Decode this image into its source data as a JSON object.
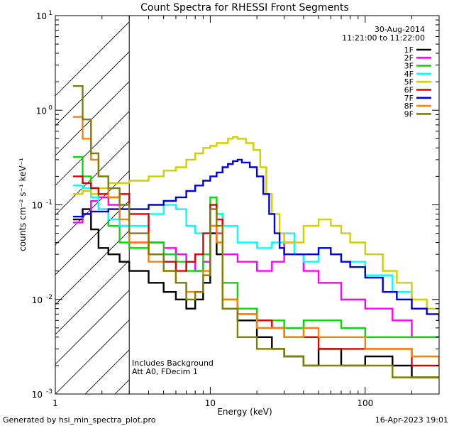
{
  "chart_data": {
    "type": "line",
    "title": "Count Spectra for RHESSI Front Segments",
    "xlabel": "Energy (keV)",
    "ylabel": "counts cm⁻² s⁻¹ keV⁻¹",
    "x_scale": "log",
    "y_scale": "log",
    "xlim": [
      1,
      300
    ],
    "ylim": [
      0.001,
      10
    ],
    "x_tick_labels": [
      {
        "v": 1,
        "t": "1"
      },
      {
        "v": 10,
        "t": "10"
      },
      {
        "v": 100,
        "t": "100"
      }
    ],
    "y_tick_labels": [
      {
        "v": 0.001,
        "b": "10",
        "e": "-3"
      },
      {
        "v": 0.01,
        "b": "10",
        "e": "-2"
      },
      {
        "v": 0.1,
        "b": "10",
        "e": "-1"
      },
      {
        "v": 1,
        "b": "10",
        "e": "0"
      },
      {
        "v": 10,
        "b": "10",
        "e": "1"
      }
    ],
    "date_label": "30-Aug-2014",
    "time_range_label": "11:21:00 to 11:22:00",
    "hatched_region_end_kev": 3,
    "annotations": [
      "Includes Background",
      "Att A0, FDecim 1"
    ],
    "legend_position": "top-right",
    "series": [
      {
        "name": "1F",
        "color": "#000000",
        "points": [
          [
            1.3,
            0.07
          ],
          [
            1.5,
            0.09
          ],
          [
            1.7,
            0.055
          ],
          [
            1.9,
            0.035
          ],
          [
            2.2,
            0.03
          ],
          [
            2.6,
            0.025
          ],
          [
            3,
            0.02
          ],
          [
            4,
            0.015
          ],
          [
            5,
            0.012
          ],
          [
            6,
            0.01
          ],
          [
            7,
            0.008
          ],
          [
            8,
            0.01
          ],
          [
            9,
            0.015
          ],
          [
            10,
            0.05
          ],
          [
            11,
            0.03
          ],
          [
            12,
            0.008
          ],
          [
            15,
            0.006
          ],
          [
            20,
            0.004
          ],
          [
            25,
            0.003
          ],
          [
            30,
            0.0025
          ],
          [
            40,
            0.002
          ],
          [
            50,
            0.003
          ],
          [
            70,
            0.002
          ],
          [
            100,
            0.0025
          ],
          [
            150,
            0.002
          ],
          [
            200,
            0.0015
          ],
          [
            250,
            0.0015
          ],
          [
            300,
            0.0015
          ]
        ]
      },
      {
        "name": "2F",
        "color": "#ff00ff",
        "points": [
          [
            1.3,
            0.065
          ],
          [
            1.5,
            0.08
          ],
          [
            1.7,
            0.11
          ],
          [
            1.9,
            0.12
          ],
          [
            2.2,
            0.1
          ],
          [
            2.6,
            0.06
          ],
          [
            3,
            0.04
          ],
          [
            4,
            0.04
          ],
          [
            5,
            0.035
          ],
          [
            6,
            0.03
          ],
          [
            7,
            0.025
          ],
          [
            8,
            0.02
          ],
          [
            9,
            0.025
          ],
          [
            10,
            0.06
          ],
          [
            11,
            0.05
          ],
          [
            12,
            0.03
          ],
          [
            15,
            0.025
          ],
          [
            20,
            0.02
          ],
          [
            25,
            0.025
          ],
          [
            30,
            0.04
          ],
          [
            35,
            0.03
          ],
          [
            40,
            0.02
          ],
          [
            50,
            0.015
          ],
          [
            70,
            0.01
          ],
          [
            100,
            0.008
          ],
          [
            150,
            0.006
          ],
          [
            200,
            0.004
          ],
          [
            300,
            0.004
          ]
        ]
      },
      {
        "name": "3F",
        "color": "#00e000",
        "points": [
          [
            1.3,
            0.32
          ],
          [
            1.5,
            0.2
          ],
          [
            1.7,
            0.15
          ],
          [
            1.9,
            0.09
          ],
          [
            2.2,
            0.06
          ],
          [
            2.6,
            0.04
          ],
          [
            3,
            0.035
          ],
          [
            4,
            0.04
          ],
          [
            5,
            0.03
          ],
          [
            6,
            0.025
          ],
          [
            7,
            0.02
          ],
          [
            8,
            0.02
          ],
          [
            9,
            0.03
          ],
          [
            10,
            0.12
          ],
          [
            11,
            0.08
          ],
          [
            12,
            0.015
          ],
          [
            15,
            0.008
          ],
          [
            20,
            0.006
          ],
          [
            25,
            0.006
          ],
          [
            30,
            0.005
          ],
          [
            40,
            0.006
          ],
          [
            50,
            0.006
          ],
          [
            70,
            0.005
          ],
          [
            100,
            0.004
          ],
          [
            150,
            0.004
          ],
          [
            200,
            0.004
          ],
          [
            300,
            0.004
          ]
        ]
      },
      {
        "name": "4F",
        "color": "#00ffff",
        "points": [
          [
            1.3,
            0.16
          ],
          [
            1.5,
            0.15
          ],
          [
            1.7,
            0.12
          ],
          [
            1.9,
            0.09
          ],
          [
            2.2,
            0.07
          ],
          [
            2.6,
            0.06
          ],
          [
            3,
            0.06
          ],
          [
            4,
            0.08
          ],
          [
            5,
            0.1
          ],
          [
            6,
            0.09
          ],
          [
            7,
            0.06
          ],
          [
            8,
            0.05
          ],
          [
            9,
            0.05
          ],
          [
            10,
            0.09
          ],
          [
            11,
            0.08
          ],
          [
            12,
            0.06
          ],
          [
            15,
            0.04
          ],
          [
            20,
            0.035
          ],
          [
            25,
            0.04
          ],
          [
            30,
            0.05
          ],
          [
            35,
            0.03
          ],
          [
            40,
            0.025
          ],
          [
            50,
            0.035
          ],
          [
            60,
            0.03
          ],
          [
            70,
            0.025
          ],
          [
            100,
            0.018
          ],
          [
            150,
            0.012
          ],
          [
            200,
            0.008
          ],
          [
            300,
            0.006
          ]
        ]
      },
      {
        "name": "5F",
        "color": "#d0d000",
        "points": [
          [
            1.3,
            0.13
          ],
          [
            1.5,
            0.14
          ],
          [
            1.7,
            0.13
          ],
          [
            1.9,
            0.15
          ],
          [
            2.2,
            0.17
          ],
          [
            2.6,
            0.17
          ],
          [
            3,
            0.18
          ],
          [
            4,
            0.2
          ],
          [
            5,
            0.23
          ],
          [
            6,
            0.25
          ],
          [
            7,
            0.3
          ],
          [
            8,
            0.35
          ],
          [
            9,
            0.4
          ],
          [
            10,
            0.42
          ],
          [
            11,
            0.45
          ],
          [
            12,
            0.45
          ],
          [
            13,
            0.5
          ],
          [
            14,
            0.52
          ],
          [
            15,
            0.5
          ],
          [
            17,
            0.45
          ],
          [
            19,
            0.38
          ],
          [
            21,
            0.25
          ],
          [
            23,
            0.13
          ],
          [
            25,
            0.08
          ],
          [
            28,
            0.05
          ],
          [
            30,
            0.04
          ],
          [
            40,
            0.06
          ],
          [
            50,
            0.07
          ],
          [
            60,
            0.06
          ],
          [
            70,
            0.05
          ],
          [
            80,
            0.04
          ],
          [
            100,
            0.03
          ],
          [
            130,
            0.02
          ],
          [
            160,
            0.015
          ],
          [
            200,
            0.01
          ],
          [
            250,
            0.008
          ],
          [
            300,
            0.006
          ]
        ]
      },
      {
        "name": "6F",
        "color": "#e00000",
        "points": [
          [
            1.3,
            0.2
          ],
          [
            1.5,
            0.17
          ],
          [
            1.7,
            0.15
          ],
          [
            1.9,
            0.13
          ],
          [
            2.2,
            0.12
          ],
          [
            2.6,
            0.13
          ],
          [
            3,
            0.08
          ],
          [
            4,
            0.03
          ],
          [
            5,
            0.025
          ],
          [
            6,
            0.02
          ],
          [
            7,
            0.025
          ],
          [
            8,
            0.03
          ],
          [
            9,
            0.05
          ],
          [
            10,
            0.1
          ],
          [
            11,
            0.07
          ],
          [
            12,
            0.01
          ],
          [
            15,
            0.007
          ],
          [
            20,
            0.006
          ],
          [
            25,
            0.005
          ],
          [
            30,
            0.004
          ],
          [
            40,
            0.004
          ],
          [
            50,
            0.003
          ],
          [
            70,
            0.003
          ],
          [
            100,
            0.003
          ],
          [
            150,
            0.003
          ],
          [
            200,
            0.002
          ],
          [
            300,
            0.002
          ]
        ]
      },
      {
        "name": "7F",
        "color": "#0000dd",
        "points": [
          [
            1.3,
            0.075
          ],
          [
            1.5,
            0.08
          ],
          [
            1.7,
            0.085
          ],
          [
            1.9,
            0.085
          ],
          [
            2.2,
            0.09
          ],
          [
            2.6,
            0.09
          ],
          [
            3,
            0.09
          ],
          [
            4,
            0.1
          ],
          [
            5,
            0.11
          ],
          [
            6,
            0.12
          ],
          [
            7,
            0.14
          ],
          [
            8,
            0.16
          ],
          [
            9,
            0.18
          ],
          [
            10,
            0.2
          ],
          [
            11,
            0.22
          ],
          [
            12,
            0.25
          ],
          [
            13,
            0.27
          ],
          [
            14,
            0.29
          ],
          [
            15,
            0.3
          ],
          [
            16,
            0.28
          ],
          [
            18,
            0.25
          ],
          [
            20,
            0.2
          ],
          [
            22,
            0.13
          ],
          [
            24,
            0.08
          ],
          [
            26,
            0.05
          ],
          [
            28,
            0.035
          ],
          [
            30,
            0.03
          ],
          [
            40,
            0.03
          ],
          [
            50,
            0.035
          ],
          [
            60,
            0.03
          ],
          [
            70,
            0.025
          ],
          [
            80,
            0.022
          ],
          [
            100,
            0.017
          ],
          [
            130,
            0.012
          ],
          [
            160,
            0.01
          ],
          [
            200,
            0.008
          ],
          [
            250,
            0.007
          ],
          [
            300,
            0.006
          ]
        ]
      },
      {
        "name": "8F",
        "color": "#ff8000",
        "points": [
          [
            1.3,
            0.85
          ],
          [
            1.5,
            0.5
          ],
          [
            1.7,
            0.3
          ],
          [
            1.9,
            0.2
          ],
          [
            2.2,
            0.12
          ],
          [
            2.6,
            0.07
          ],
          [
            3,
            0.04
          ],
          [
            4,
            0.025
          ],
          [
            5,
            0.02
          ],
          [
            6,
            0.015
          ],
          [
            7,
            0.012
          ],
          [
            8,
            0.012
          ],
          [
            9,
            0.02
          ],
          [
            10,
            0.06
          ],
          [
            11,
            0.04
          ],
          [
            12,
            0.01
          ],
          [
            15,
            0.007
          ],
          [
            20,
            0.005
          ],
          [
            25,
            0.005
          ],
          [
            30,
            0.004
          ],
          [
            40,
            0.005
          ],
          [
            50,
            0.004
          ],
          [
            70,
            0.004
          ],
          [
            100,
            0.003
          ],
          [
            150,
            0.003
          ],
          [
            200,
            0.0025
          ],
          [
            300,
            0.002
          ]
        ]
      },
      {
        "name": "9F",
        "color": "#808000",
        "points": [
          [
            1.3,
            1.8
          ],
          [
            1.5,
            0.8
          ],
          [
            1.7,
            0.35
          ],
          [
            1.9,
            0.2
          ],
          [
            2.2,
            0.15
          ],
          [
            2.6,
            0.1
          ],
          [
            3,
            0.05
          ],
          [
            4,
            0.03
          ],
          [
            5,
            0.02
          ],
          [
            6,
            0.015
          ],
          [
            7,
            0.01
          ],
          [
            8,
            0.012
          ],
          [
            9,
            0.018
          ],
          [
            10,
            0.09
          ],
          [
            11,
            0.06
          ],
          [
            12,
            0.008
          ],
          [
            15,
            0.004
          ],
          [
            20,
            0.003
          ],
          [
            25,
            0.003
          ],
          [
            30,
            0.0025
          ],
          [
            40,
            0.002
          ],
          [
            50,
            0.002
          ],
          [
            70,
            0.002
          ],
          [
            100,
            0.002
          ],
          [
            150,
            0.0015
          ],
          [
            200,
            0.0015
          ],
          [
            300,
            0.0015
          ]
        ]
      }
    ]
  },
  "footer": {
    "generator": "Generated by hsi_min_spectra_plot.pro",
    "timestamp": "16-Apr-2023 19:01"
  }
}
